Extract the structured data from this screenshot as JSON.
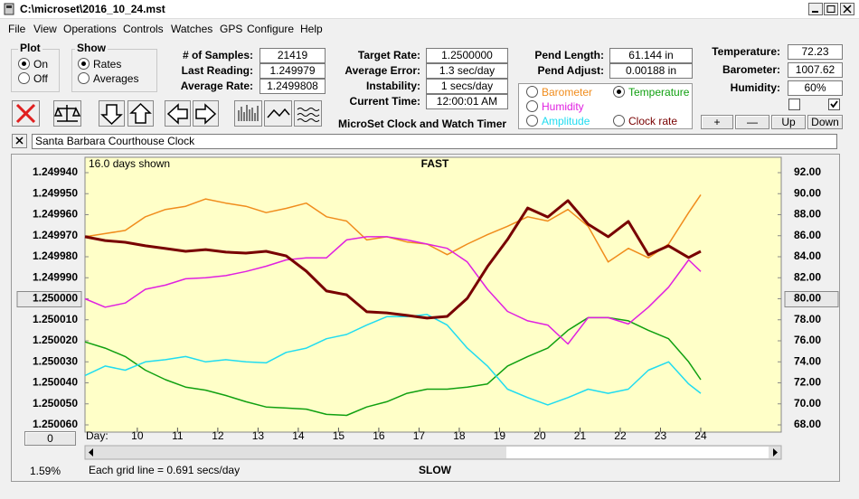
{
  "window": {
    "title": "C:\\microset\\2016_10_24.mst"
  },
  "menu": [
    "File",
    "View",
    "Operations",
    "Controls",
    "Watches",
    "GPS",
    "Configure",
    "Help"
  ],
  "plot_group": {
    "label": "Plot",
    "options": [
      "On",
      "Off"
    ]
  },
  "show_group": {
    "label": "Show",
    "options": [
      "Rates",
      "Averages"
    ]
  },
  "stats": [
    {
      "label": "# of Samples:",
      "value": "21419"
    },
    {
      "label": "Last Reading:",
      "value": "1.249979"
    },
    {
      "label": "Average Rate:",
      "value": "1.2499808"
    },
    {
      "label": "Target Rate:",
      "value": "1.2500000"
    },
    {
      "label": "Average Error:",
      "value": "1.3 sec/day"
    },
    {
      "label": "Instability:",
      "value": "1 secs/day"
    },
    {
      "label": "Current Time:",
      "value": "12:00:01 AM"
    },
    {
      "label": "Pend Length:",
      "value": "61.144 in"
    },
    {
      "label": "Pend Adjust:",
      "value": "0.00188 in"
    },
    {
      "label": "Temperature:",
      "value": "72.23"
    },
    {
      "label": "Barometer:",
      "value": "1007.62"
    },
    {
      "label": "Humidity:",
      "value": "60%"
    }
  ],
  "app_caption": "MicroSet Clock and Watch Timer",
  "buttons": [
    "+",
    "—",
    "Up",
    "Down"
  ],
  "clock_name": "Santa Barbara Courthouse Clock",
  "status": {
    "offset": "0",
    "percent": "1.59%"
  },
  "chart_data": {
    "type": "line",
    "span_note": "16.0 days shown",
    "top_label": "FAST",
    "bottom_label": "SLOW",
    "xlabel": "Day:",
    "grid_note": "Each grid line = 0.691 secs/day",
    "x": [
      8.7,
      9.2,
      9.7,
      10.2,
      10.7,
      11.2,
      11.7,
      12.2,
      12.7,
      13.2,
      13.7,
      14.2,
      14.7,
      15.2,
      15.7,
      16.2,
      16.7,
      17.2,
      17.7,
      18.2,
      18.7,
      19.2,
      19.7,
      20.2,
      20.7,
      21.2,
      21.7,
      22.2,
      22.7,
      23.2,
      23.7,
      24.0
    ],
    "xlim": [
      8.7,
      26
    ],
    "xticks": [
      10,
      11,
      12,
      13,
      14,
      15,
      16,
      17,
      18,
      19,
      20,
      21,
      22,
      23,
      24
    ],
    "ylim": [
      1.24994,
      1.25006
    ],
    "y_inverted": true,
    "yticks": [
      {
        "value": 1.24994,
        "label": "1.249940"
      },
      {
        "value": 1.24995,
        "label": "1.249950"
      },
      {
        "value": 1.24996,
        "label": "1.249960"
      },
      {
        "value": 1.24997,
        "label": "1.249970"
      },
      {
        "value": 1.24998,
        "label": "1.249980"
      },
      {
        "value": 1.24999,
        "label": "1.249990"
      },
      {
        "value": 1.25,
        "label": "1.250000"
      },
      {
        "value": 1.25001,
        "label": "1.250010"
      },
      {
        "value": 1.25002,
        "label": "1.250020"
      },
      {
        "value": 1.25003,
        "label": "1.250030"
      },
      {
        "value": 1.25004,
        "label": "1.250040"
      },
      {
        "value": 1.25005,
        "label": "1.250050"
      },
      {
        "value": 1.25006,
        "label": "1.250060"
      }
    ],
    "y2lim": [
      68,
      92
    ],
    "y2ticks": [
      {
        "value": 92,
        "label": "92.00"
      },
      {
        "value": 90,
        "label": "90.00"
      },
      {
        "value": 88,
        "label": "88.00"
      },
      {
        "value": 86,
        "label": "86.00"
      },
      {
        "value": 84,
        "label": "84.00"
      },
      {
        "value": 82,
        "label": "82.00"
      },
      {
        "value": 80,
        "label": "80.00"
      },
      {
        "value": 78,
        "label": "78.00"
      },
      {
        "value": 76,
        "label": "76.00"
      },
      {
        "value": 74,
        "label": "74.00"
      },
      {
        "value": 72,
        "label": "72.00"
      },
      {
        "value": 70,
        "label": "70.00"
      },
      {
        "value": 68,
        "label": "68.00"
      }
    ],
    "background": "#ffffc8",
    "series": [
      {
        "name": "Clock rate",
        "color": "#780000",
        "width": 3,
        "values": [
          1.2499705,
          1.2499723,
          1.2499731,
          1.2499748,
          1.2499761,
          1.2499774,
          1.2499766,
          1.2499778,
          1.2499783,
          1.2499774,
          1.2499796,
          1.2499869,
          1.2499963,
          1.2499981,
          1.2500062,
          1.2500067,
          1.2500079,
          1.2500092,
          1.2500084,
          1.2499998,
          1.2499847,
          1.2499718,
          1.2499568,
          1.2499611,
          1.2499533,
          1.2499645,
          1.2499705,
          1.2499632,
          1.2499791,
          1.2499748,
          1.2499804,
          1.2499774
        ]
      },
      {
        "name": "Barometer",
        "color": "#f08c1c",
        "width": 1.5,
        "axis": "y2",
        "values": [
          85.9,
          86.2,
          86.5,
          87.8,
          88.5,
          88.8,
          89.5,
          89.1,
          88.8,
          88.2,
          88.6,
          89.1,
          87.8,
          87.4,
          85.6,
          85.9,
          85.4,
          85.2,
          84.2,
          85.2,
          86.1,
          86.9,
          87.8,
          87.4,
          88.5,
          86.9,
          83.5,
          84.8,
          83.9,
          85.2,
          88.2,
          89.9
        ]
      },
      {
        "name": "Temperature",
        "color": "#10a010",
        "width": 1.5,
        "axis": "y2",
        "values": [
          75.9,
          75.3,
          74.5,
          73.2,
          72.3,
          71.6,
          71.3,
          70.8,
          70.2,
          69.7,
          69.6,
          69.5,
          69.0,
          68.9,
          69.7,
          70.2,
          71.0,
          71.4,
          71.4,
          71.6,
          71.9,
          73.6,
          74.5,
          75.3,
          77.0,
          78.2,
          78.2,
          77.9,
          77.0,
          76.2,
          74.0,
          72.3
        ]
      },
      {
        "name": "Humidity",
        "color": "#e020e0",
        "width": 1.5,
        "axis": "y2",
        "values": [
          80.0,
          79.2,
          79.6,
          80.9,
          81.3,
          81.9,
          82.0,
          82.2,
          82.6,
          83.1,
          83.7,
          83.9,
          83.9,
          85.6,
          85.9,
          85.9,
          85.6,
          85.2,
          84.8,
          83.5,
          80.9,
          78.8,
          77.9,
          77.5,
          75.7,
          78.2,
          78.2,
          77.6,
          79.2,
          81.1,
          83.7,
          82.6
        ]
      },
      {
        "name": "Amplitude",
        "color": "#20dcf0",
        "width": 1.5,
        "axis": "y2",
        "values": [
          72.7,
          73.6,
          73.2,
          74.0,
          74.2,
          74.5,
          74.0,
          74.2,
          74.0,
          73.9,
          74.9,
          75.3,
          76.2,
          76.6,
          77.5,
          78.3,
          78.3,
          78.5,
          77.5,
          75.3,
          73.6,
          71.4,
          70.6,
          69.9,
          70.6,
          71.4,
          71.0,
          71.4,
          73.2,
          74.0,
          71.9,
          71.0
        ]
      }
    ]
  }
}
